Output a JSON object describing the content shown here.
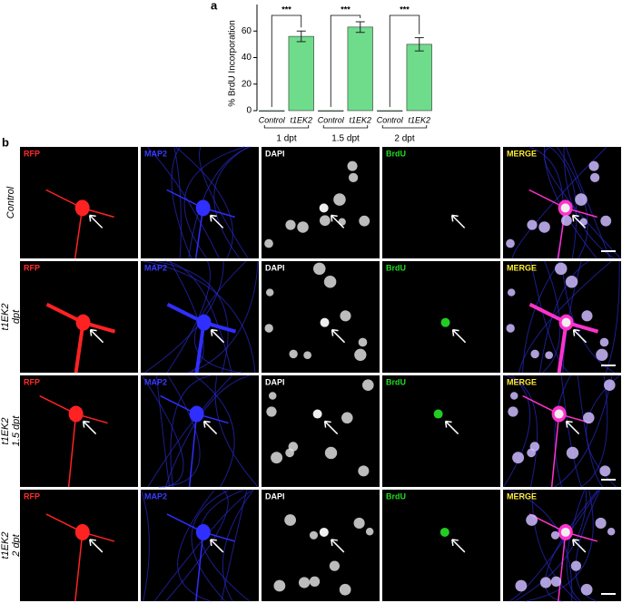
{
  "chart_data": {
    "type": "bar",
    "panel_label": "a",
    "y_label": "% BrdU Incorporation",
    "categories": [
      "Control",
      "t1EK2",
      "Control",
      "t1EK2",
      "Control",
      "t1EK2"
    ],
    "groups": [
      "1 dpt",
      "1.5 dpt",
      "2 dpt"
    ],
    "values": [
      0,
      56,
      0,
      63,
      0,
      50
    ],
    "errors": [
      null,
      4,
      null,
      4,
      null,
      5
    ],
    "significance": [
      "***",
      "***",
      "***"
    ],
    "color": "#6fdc8c",
    "ylim": [
      0,
      80
    ],
    "yticks": [
      0,
      20,
      40,
      60
    ]
  },
  "figure": {
    "panel_label": "b",
    "channels": [
      {
        "name": "RFP",
        "color": "#ff2a2a"
      },
      {
        "name": "MAP2",
        "color": "#3a3aff"
      },
      {
        "name": "DAPI",
        "color": "#ffffff"
      },
      {
        "name": "BrdU",
        "color": "#22dd22"
      },
      {
        "name": "MERGE",
        "color": "#ffee33"
      }
    ],
    "rows": [
      [
        "Control"
      ],
      [
        "t1EK2",
        "dpt"
      ],
      [
        "t1EK2",
        "1.5 dpt"
      ],
      [
        "t1EK2",
        "2 dpt"
      ]
    ]
  }
}
